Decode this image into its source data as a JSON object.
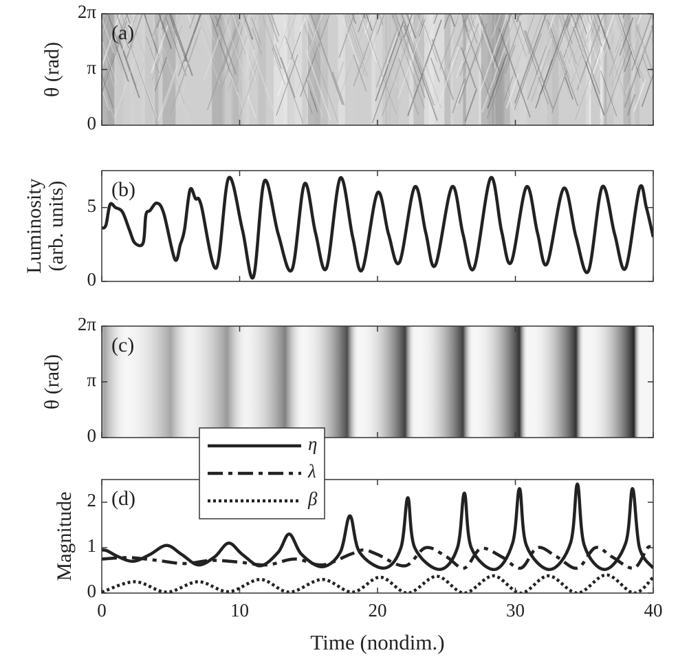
{
  "chart_data": [
    {
      "type": "image",
      "annotation": "(a)",
      "ylabel": "θ (rad)",
      "xlim": [
        0,
        40
      ],
      "ylim": [
        0,
        6.28319
      ],
      "yticks": [
        0,
        {
          "value": 3.14159,
          "label": "π"
        },
        {
          "value": 6.28319,
          "label": "2π"
        }
      ]
    },
    {
      "type": "line",
      "annotation": "(b)",
      "ylabel": [
        "Luminosity",
        "(arb. units)"
      ],
      "xlim": [
        0,
        40
      ],
      "ylim": [
        0,
        7.5
      ],
      "yticks": [
        0,
        5
      ],
      "series": [
        {
          "color": "#222222",
          "x": [
            0,
            0.3,
            0.6,
            1.0,
            1.5,
            2.0,
            2.4,
            3.0,
            3.2,
            3.5,
            4.0,
            4.5,
            5.3,
            5.7,
            6.0,
            6.4,
            6.8,
            7.2,
            8.3,
            9.2,
            10.2,
            11.0,
            11.8,
            12.8,
            13.8,
            14.7,
            15.5,
            16.3,
            17.3,
            18.2,
            18.9,
            20.0,
            20.8,
            21.6,
            22.7,
            23.5,
            24.2,
            25.4,
            26.2,
            27.0,
            28.2,
            29.0,
            29.7,
            30.8,
            31.6,
            32.3,
            33.5,
            34.4,
            35.3,
            36.3,
            37.2,
            38.0,
            39.0,
            39.5,
            40
          ],
          "values": [
            3.6,
            3.8,
            5.2,
            5.0,
            4.7,
            3.5,
            2.6,
            2.6,
            4.5,
            4.8,
            5.3,
            4.6,
            1.5,
            2.5,
            3.5,
            6.2,
            5.6,
            5.2,
            0.9,
            7.0,
            3.5,
            0.3,
            6.8,
            3.2,
            0.8,
            6.6,
            3.3,
            0.9,
            7.0,
            3.0,
            0.8,
            6.0,
            3.2,
            1.3,
            6.4,
            3.3,
            1.1,
            6.4,
            3.2,
            0.9,
            7.0,
            3.4,
            1.3,
            6.4,
            3.3,
            1.2,
            6.3,
            3.0,
            0.7,
            6.4,
            3.2,
            0.9,
            6.3,
            5.0,
            3.0
          ]
        }
      ]
    },
    {
      "type": "heatmap",
      "annotation": "(c)",
      "ylabel": "θ (rad)",
      "xlim": [
        0,
        40
      ],
      "ylim": [
        0,
        6.28319
      ],
      "yticks": [
        0,
        {
          "value": 3.14159,
          "label": "π"
        },
        {
          "value": 6.28319,
          "label": "2π"
        }
      ],
      "x": [
        0.2,
        5.0,
        9.1,
        13.3,
        17.8,
        22.0,
        26.2,
        30.3,
        34.4,
        38.6
      ],
      "values": [
        0.35,
        0.35,
        0.4,
        0.5,
        0.7,
        0.75,
        0.75,
        0.8,
        0.8,
        0.85
      ]
    },
    {
      "type": "line",
      "annotation": "(d)",
      "ylabel": "Magnitude",
      "xlabel": "Time (nondim.)",
      "xlim": [
        0,
        40
      ],
      "ylim": [
        0,
        2.5
      ],
      "xticks": [
        0,
        10,
        20,
        30,
        40
      ],
      "yticks": [
        0,
        1,
        2
      ],
      "legend": "upper left",
      "series": [
        {
          "name": "η",
          "color": "#222222",
          "dash": "none",
          "x": [
            0,
            0.4,
            1.2,
            2.3,
            3.5,
            4.7,
            5.8,
            7.0,
            8.2,
            9.2,
            10.2,
            11.5,
            12.8,
            13.6,
            14.5,
            16.0,
            17.3,
            18.0,
            18.7,
            20.5,
            21.7,
            22.2,
            22.7,
            24.5,
            25.8,
            26.3,
            26.8,
            28.5,
            29.8,
            30.3,
            30.8,
            32.5,
            34.0,
            34.5,
            35.0,
            36.5,
            38.0,
            38.5,
            39.0,
            40
          ],
          "values": [
            0.95,
            0.93,
            0.8,
            0.7,
            0.85,
            1.05,
            0.85,
            0.62,
            0.8,
            1.1,
            0.85,
            0.6,
            0.9,
            1.3,
            0.85,
            0.58,
            0.9,
            1.7,
            0.9,
            0.55,
            1.0,
            2.1,
            1.0,
            0.52,
            1.0,
            2.2,
            1.0,
            0.52,
            1.1,
            2.3,
            1.05,
            0.52,
            1.1,
            2.4,
            1.05,
            0.52,
            1.1,
            2.3,
            1.0,
            0.55
          ]
        },
        {
          "name": "λ",
          "color": "#222222",
          "dash": "22,8,6,8",
          "x": [
            0,
            2,
            4,
            6,
            8,
            10,
            12,
            14,
            16,
            18,
            19,
            20,
            22,
            23.5,
            25,
            26.3,
            27.5,
            29,
            30.4,
            31.6,
            33,
            34.5,
            35.8,
            37,
            38.6,
            39.6,
            40
          ],
          "values": [
            0.75,
            0.78,
            0.72,
            0.65,
            0.72,
            0.68,
            0.62,
            0.75,
            0.62,
            0.85,
            0.95,
            0.85,
            0.6,
            1.0,
            0.8,
            0.55,
            0.98,
            0.8,
            0.55,
            1.0,
            0.8,
            0.55,
            1.0,
            0.8,
            0.55,
            1.0,
            0.95
          ]
        },
        {
          "name": "β",
          "color": "#222222",
          "dash": "4,4",
          "x": [
            0,
            2.4,
            4.7,
            7.0,
            9.2,
            11.5,
            13.6,
            16.0,
            18.2,
            20.2,
            22.2,
            24.3,
            26.3,
            28.4,
            30.4,
            32.4,
            34.5,
            36.6,
            38.6,
            40
          ],
          "values": [
            0.02,
            0.25,
            0.02,
            0.25,
            0.03,
            0.3,
            0.02,
            0.3,
            0.02,
            0.35,
            0,
            0.37,
            0,
            0.38,
            0,
            0.38,
            0,
            0.4,
            0,
            0.35
          ]
        }
      ]
    }
  ]
}
